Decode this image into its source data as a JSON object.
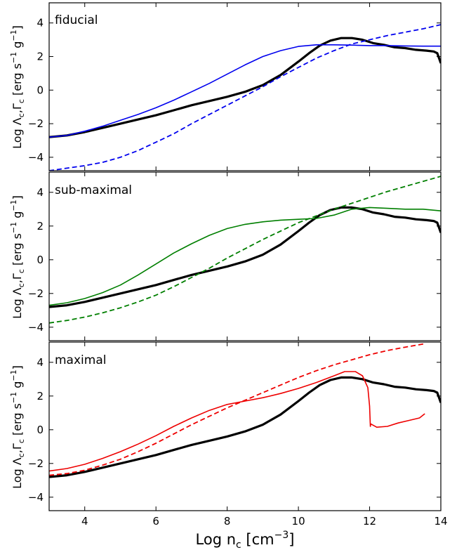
{
  "figure": {
    "xlabel_main": "Log n",
    "xlabel_sub": "c",
    "xlabel_unit_open": " [cm",
    "xlabel_unit_sup": "−3",
    "xlabel_unit_close": "]",
    "ylabel_parts": {
      "log": "Log ",
      "lambda": "Λ",
      "sub_c": "c",
      "comma": ",",
      "gamma": "Γ",
      "units_a": " [erg s",
      "sup_minus1": "−1",
      "units_b": " g",
      "close": "]"
    },
    "colors": {
      "fiducial": "#0000ee",
      "sub-maximal": "#007f00",
      "maximal": "#ee0000",
      "reference": "#000000"
    }
  },
  "chart_data": [
    {
      "type": "line",
      "panel_label": "fiducial",
      "xlim": [
        3,
        14
      ],
      "ylim": [
        -4.8,
        5.2
      ],
      "xticks": [
        4,
        6,
        8,
        10,
        12,
        14
      ],
      "yticks": [
        -4,
        -2,
        0,
        2,
        4
      ],
      "show_xtick_labels": false,
      "series": [
        {
          "style": "thick-black",
          "color": "#000000",
          "x": [
            3.0,
            3.5,
            4.0,
            4.5,
            5.0,
            5.5,
            6.0,
            6.5,
            7.0,
            7.5,
            8.0,
            8.5,
            9.0,
            9.5,
            10.0,
            10.3,
            10.6,
            10.9,
            11.2,
            11.5,
            11.8,
            12.1,
            12.4,
            12.7,
            13.0,
            13.3,
            13.6,
            13.8,
            13.9,
            14.0
          ],
          "y": [
            -2.8,
            -2.7,
            -2.5,
            -2.25,
            -2.0,
            -1.75,
            -1.5,
            -1.2,
            -0.9,
            -0.65,
            -0.4,
            -0.1,
            0.3,
            0.9,
            1.7,
            2.2,
            2.65,
            2.95,
            3.1,
            3.1,
            3.0,
            2.8,
            2.7,
            2.55,
            2.5,
            2.4,
            2.35,
            2.3,
            2.2,
            1.6
          ]
        },
        {
          "style": "solid",
          "color": "#0000ee",
          "x": [
            3.0,
            3.5,
            4.0,
            4.5,
            5.0,
            5.5,
            6.0,
            6.5,
            7.0,
            7.5,
            8.0,
            8.5,
            9.0,
            9.5,
            10.0,
            10.5,
            11.0,
            11.5,
            12.0,
            12.5,
            13.0,
            13.5,
            14.0
          ],
          "y": [
            -2.8,
            -2.7,
            -2.45,
            -2.15,
            -1.8,
            -1.45,
            -1.05,
            -0.6,
            -0.1,
            0.4,
            0.95,
            1.5,
            2.0,
            2.35,
            2.6,
            2.7,
            2.7,
            2.68,
            2.65,
            2.65,
            2.63,
            2.62,
            2.62
          ]
        },
        {
          "style": "dashed",
          "color": "#0000ee",
          "x": [
            3.0,
            3.5,
            4.0,
            4.5,
            5.0,
            5.5,
            6.0,
            6.5,
            7.0,
            7.5,
            8.0,
            8.5,
            9.0,
            9.5,
            10.0,
            10.5,
            11.0,
            11.5,
            12.0,
            12.5,
            13.0,
            13.5,
            14.0
          ],
          "y": [
            -4.8,
            -4.65,
            -4.5,
            -4.3,
            -4.0,
            -3.6,
            -3.1,
            -2.6,
            -2.0,
            -1.45,
            -0.9,
            -0.35,
            0.2,
            0.8,
            1.35,
            1.9,
            2.35,
            2.75,
            3.0,
            3.25,
            3.45,
            3.65,
            3.9
          ]
        }
      ]
    },
    {
      "type": "line",
      "panel_label": "sub-maximal",
      "xlim": [
        3,
        14
      ],
      "ylim": [
        -4.8,
        5.2
      ],
      "xticks": [
        4,
        6,
        8,
        10,
        12,
        14
      ],
      "yticks": [
        -4,
        -2,
        0,
        2,
        4
      ],
      "show_xtick_labels": false,
      "series": [
        {
          "style": "thick-black",
          "color": "#000000",
          "x": [
            3.0,
            3.5,
            4.0,
            4.5,
            5.0,
            5.5,
            6.0,
            6.5,
            7.0,
            7.5,
            8.0,
            8.5,
            9.0,
            9.5,
            10.0,
            10.3,
            10.6,
            10.9,
            11.2,
            11.5,
            11.8,
            12.1,
            12.4,
            12.7,
            13.0,
            13.3,
            13.6,
            13.8,
            13.9,
            14.0
          ],
          "y": [
            -2.8,
            -2.7,
            -2.5,
            -2.25,
            -2.0,
            -1.75,
            -1.5,
            -1.2,
            -0.9,
            -0.65,
            -0.4,
            -0.1,
            0.3,
            0.9,
            1.7,
            2.2,
            2.65,
            2.95,
            3.1,
            3.1,
            3.0,
            2.8,
            2.7,
            2.55,
            2.5,
            2.4,
            2.35,
            2.3,
            2.2,
            1.6
          ]
        },
        {
          "style": "solid",
          "color": "#007f00",
          "x": [
            3.0,
            3.5,
            4.0,
            4.5,
            5.0,
            5.5,
            6.0,
            6.5,
            7.0,
            7.5,
            8.0,
            8.5,
            9.0,
            9.5,
            10.0,
            10.5,
            11.0,
            11.5,
            12.0,
            12.5,
            13.0,
            13.5,
            14.0
          ],
          "y": [
            -2.7,
            -2.55,
            -2.3,
            -1.95,
            -1.5,
            -0.9,
            -0.25,
            0.4,
            0.95,
            1.45,
            1.85,
            2.1,
            2.25,
            2.35,
            2.4,
            2.45,
            2.65,
            3.0,
            3.1,
            3.05,
            3.0,
            3.0,
            2.9
          ]
        },
        {
          "style": "dashed",
          "color": "#007f00",
          "x": [
            3.0,
            3.5,
            4.0,
            4.5,
            5.0,
            5.5,
            6.0,
            6.5,
            7.0,
            7.5,
            8.0,
            8.5,
            9.0,
            9.5,
            10.0,
            10.5,
            11.0,
            11.5,
            12.0,
            12.5,
            13.0,
            13.5,
            14.0
          ],
          "y": [
            -3.75,
            -3.6,
            -3.4,
            -3.15,
            -2.85,
            -2.5,
            -2.1,
            -1.6,
            -1.05,
            -0.5,
            0.1,
            0.65,
            1.2,
            1.7,
            2.2,
            2.6,
            3.0,
            3.35,
            3.7,
            4.05,
            4.35,
            4.65,
            4.95
          ]
        }
      ]
    },
    {
      "type": "line",
      "panel_label": "maximal",
      "xlim": [
        3,
        14
      ],
      "ylim": [
        -4.8,
        5.2
      ],
      "xticks": [
        4,
        6,
        8,
        10,
        12,
        14
      ],
      "yticks": [
        -4,
        -2,
        0,
        2,
        4
      ],
      "show_xtick_labels": true,
      "series": [
        {
          "style": "thick-black",
          "color": "#000000",
          "x": [
            3.0,
            3.5,
            4.0,
            4.5,
            5.0,
            5.5,
            6.0,
            6.5,
            7.0,
            7.5,
            8.0,
            8.5,
            9.0,
            9.5,
            10.0,
            10.3,
            10.6,
            10.9,
            11.2,
            11.5,
            11.8,
            12.1,
            12.4,
            12.7,
            13.0,
            13.3,
            13.6,
            13.8,
            13.9,
            14.0
          ],
          "y": [
            -2.8,
            -2.7,
            -2.5,
            -2.25,
            -2.0,
            -1.75,
            -1.5,
            -1.2,
            -0.9,
            -0.65,
            -0.4,
            -0.1,
            0.3,
            0.9,
            1.7,
            2.2,
            2.65,
            2.95,
            3.1,
            3.1,
            3.0,
            2.8,
            2.7,
            2.55,
            2.5,
            2.4,
            2.35,
            2.3,
            2.2,
            1.6
          ]
        },
        {
          "style": "solid",
          "color": "#ee0000",
          "x": [
            3.0,
            3.5,
            4.0,
            4.5,
            5.0,
            5.5,
            6.0,
            6.5,
            7.0,
            7.5,
            8.0,
            8.5,
            9.0,
            9.5,
            10.0,
            10.5,
            11.0,
            11.3,
            11.6,
            11.8,
            11.95,
            12.0,
            12.02,
            12.03,
            12.2,
            12.5,
            12.8,
            13.1,
            13.4,
            13.55
          ],
          "y": [
            -2.45,
            -2.3,
            -2.05,
            -1.7,
            -1.3,
            -0.85,
            -0.35,
            0.2,
            0.7,
            1.15,
            1.5,
            1.7,
            1.9,
            2.15,
            2.45,
            2.8,
            3.2,
            3.45,
            3.45,
            3.2,
            2.5,
            1.4,
            0.2,
            0.35,
            0.15,
            0.2,
            0.4,
            0.55,
            0.7,
            0.95
          ]
        },
        {
          "style": "dashed",
          "color": "#ee0000",
          "x": [
            3.0,
            3.5,
            4.0,
            4.5,
            5.0,
            5.5,
            6.0,
            6.5,
            7.0,
            7.5,
            8.0,
            8.5,
            9.0,
            9.5,
            10.0,
            10.5,
            11.0,
            11.5,
            12.0,
            12.5,
            13.0,
            13.55
          ],
          "y": [
            -2.7,
            -2.6,
            -2.4,
            -2.1,
            -1.75,
            -1.3,
            -0.8,
            -0.25,
            0.3,
            0.8,
            1.3,
            1.75,
            2.2,
            2.65,
            3.1,
            3.5,
            3.85,
            4.15,
            4.45,
            4.7,
            4.9,
            5.1
          ]
        }
      ]
    }
  ]
}
